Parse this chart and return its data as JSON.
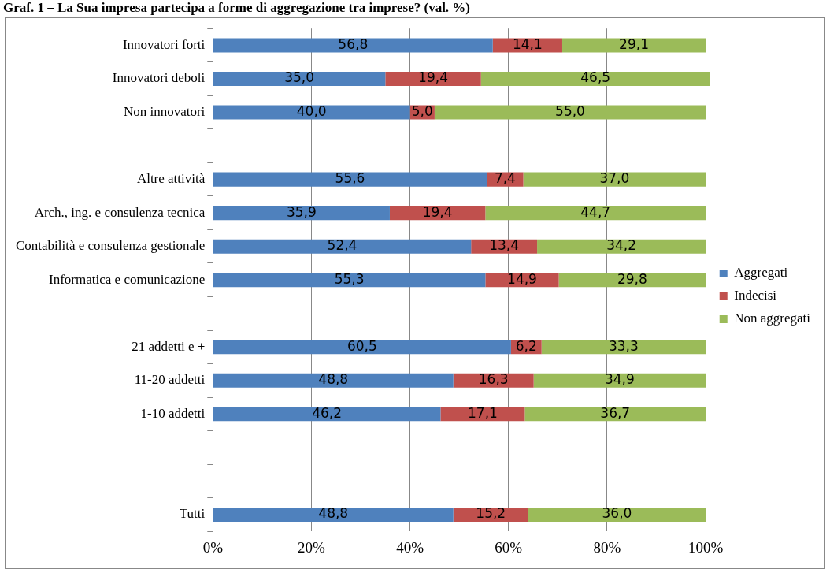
{
  "chart_data": {
    "type": "bar",
    "orientation": "horizontal",
    "stacked": true,
    "title": "Graf. 1 – La Sua impresa partecipa a forme di aggregazione tra imprese? (val. %)",
    "categories": [
      "Innovatori forti",
      "Innovatori deboli",
      "Non innovatori",
      null,
      "Altre attività",
      "Arch., ing. e consulenza tecnica",
      "Contabilità e consulenza gestionale",
      "Informatica e comunicazione",
      null,
      "21 addetti e +",
      "11-20 addetti",
      "1-10 addetti",
      null,
      null,
      "Tutti"
    ],
    "series": [
      {
        "name": "Aggregati",
        "color": "#4f81bd",
        "values": [
          56.8,
          35.0,
          40.0,
          null,
          55.6,
          35.9,
          52.4,
          55.3,
          null,
          60.5,
          48.8,
          46.2,
          null,
          null,
          48.8
        ],
        "value_labels": [
          "56,8",
          "35,0",
          "40,0",
          null,
          "55,6",
          "35,9",
          "52,4",
          "55,3",
          null,
          "60,5",
          "48,8",
          "46,2",
          null,
          null,
          "48,8"
        ]
      },
      {
        "name": "Indecisi",
        "color": "#c0504d",
        "values": [
          14.1,
          19.4,
          5.0,
          null,
          7.4,
          19.4,
          13.4,
          14.9,
          null,
          6.2,
          16.3,
          17.1,
          null,
          null,
          15.2
        ],
        "value_labels": [
          "14,1",
          "19,4",
          "5,0",
          null,
          "7,4",
          "19,4",
          "13,4",
          "14,9",
          null,
          "6,2",
          "16,3",
          "17,1",
          null,
          null,
          "15,2"
        ]
      },
      {
        "name": "Non aggregati",
        "color": "#9bbb59",
        "values": [
          29.1,
          46.5,
          55.0,
          null,
          37.0,
          44.7,
          34.2,
          29.8,
          null,
          33.3,
          34.9,
          36.7,
          null,
          null,
          36.0
        ],
        "value_labels": [
          "29,1",
          "46,5",
          "55,0",
          null,
          "37,0",
          "44,7",
          "34,2",
          "29,8",
          null,
          "33,3",
          "34,9",
          "36,7",
          null,
          null,
          "36,0"
        ]
      }
    ],
    "xlim": [
      0,
      100.9
    ],
    "xticks": [
      {
        "value": 0,
        "label": "0%"
      },
      {
        "value": 20,
        "label": "20%"
      },
      {
        "value": 40,
        "label": "40%"
      },
      {
        "value": 60,
        "label": "60%"
      },
      {
        "value": 80,
        "label": "80%"
      },
      {
        "value": 100,
        "label": "100%"
      }
    ],
    "grid": "x",
    "legend": "right"
  }
}
